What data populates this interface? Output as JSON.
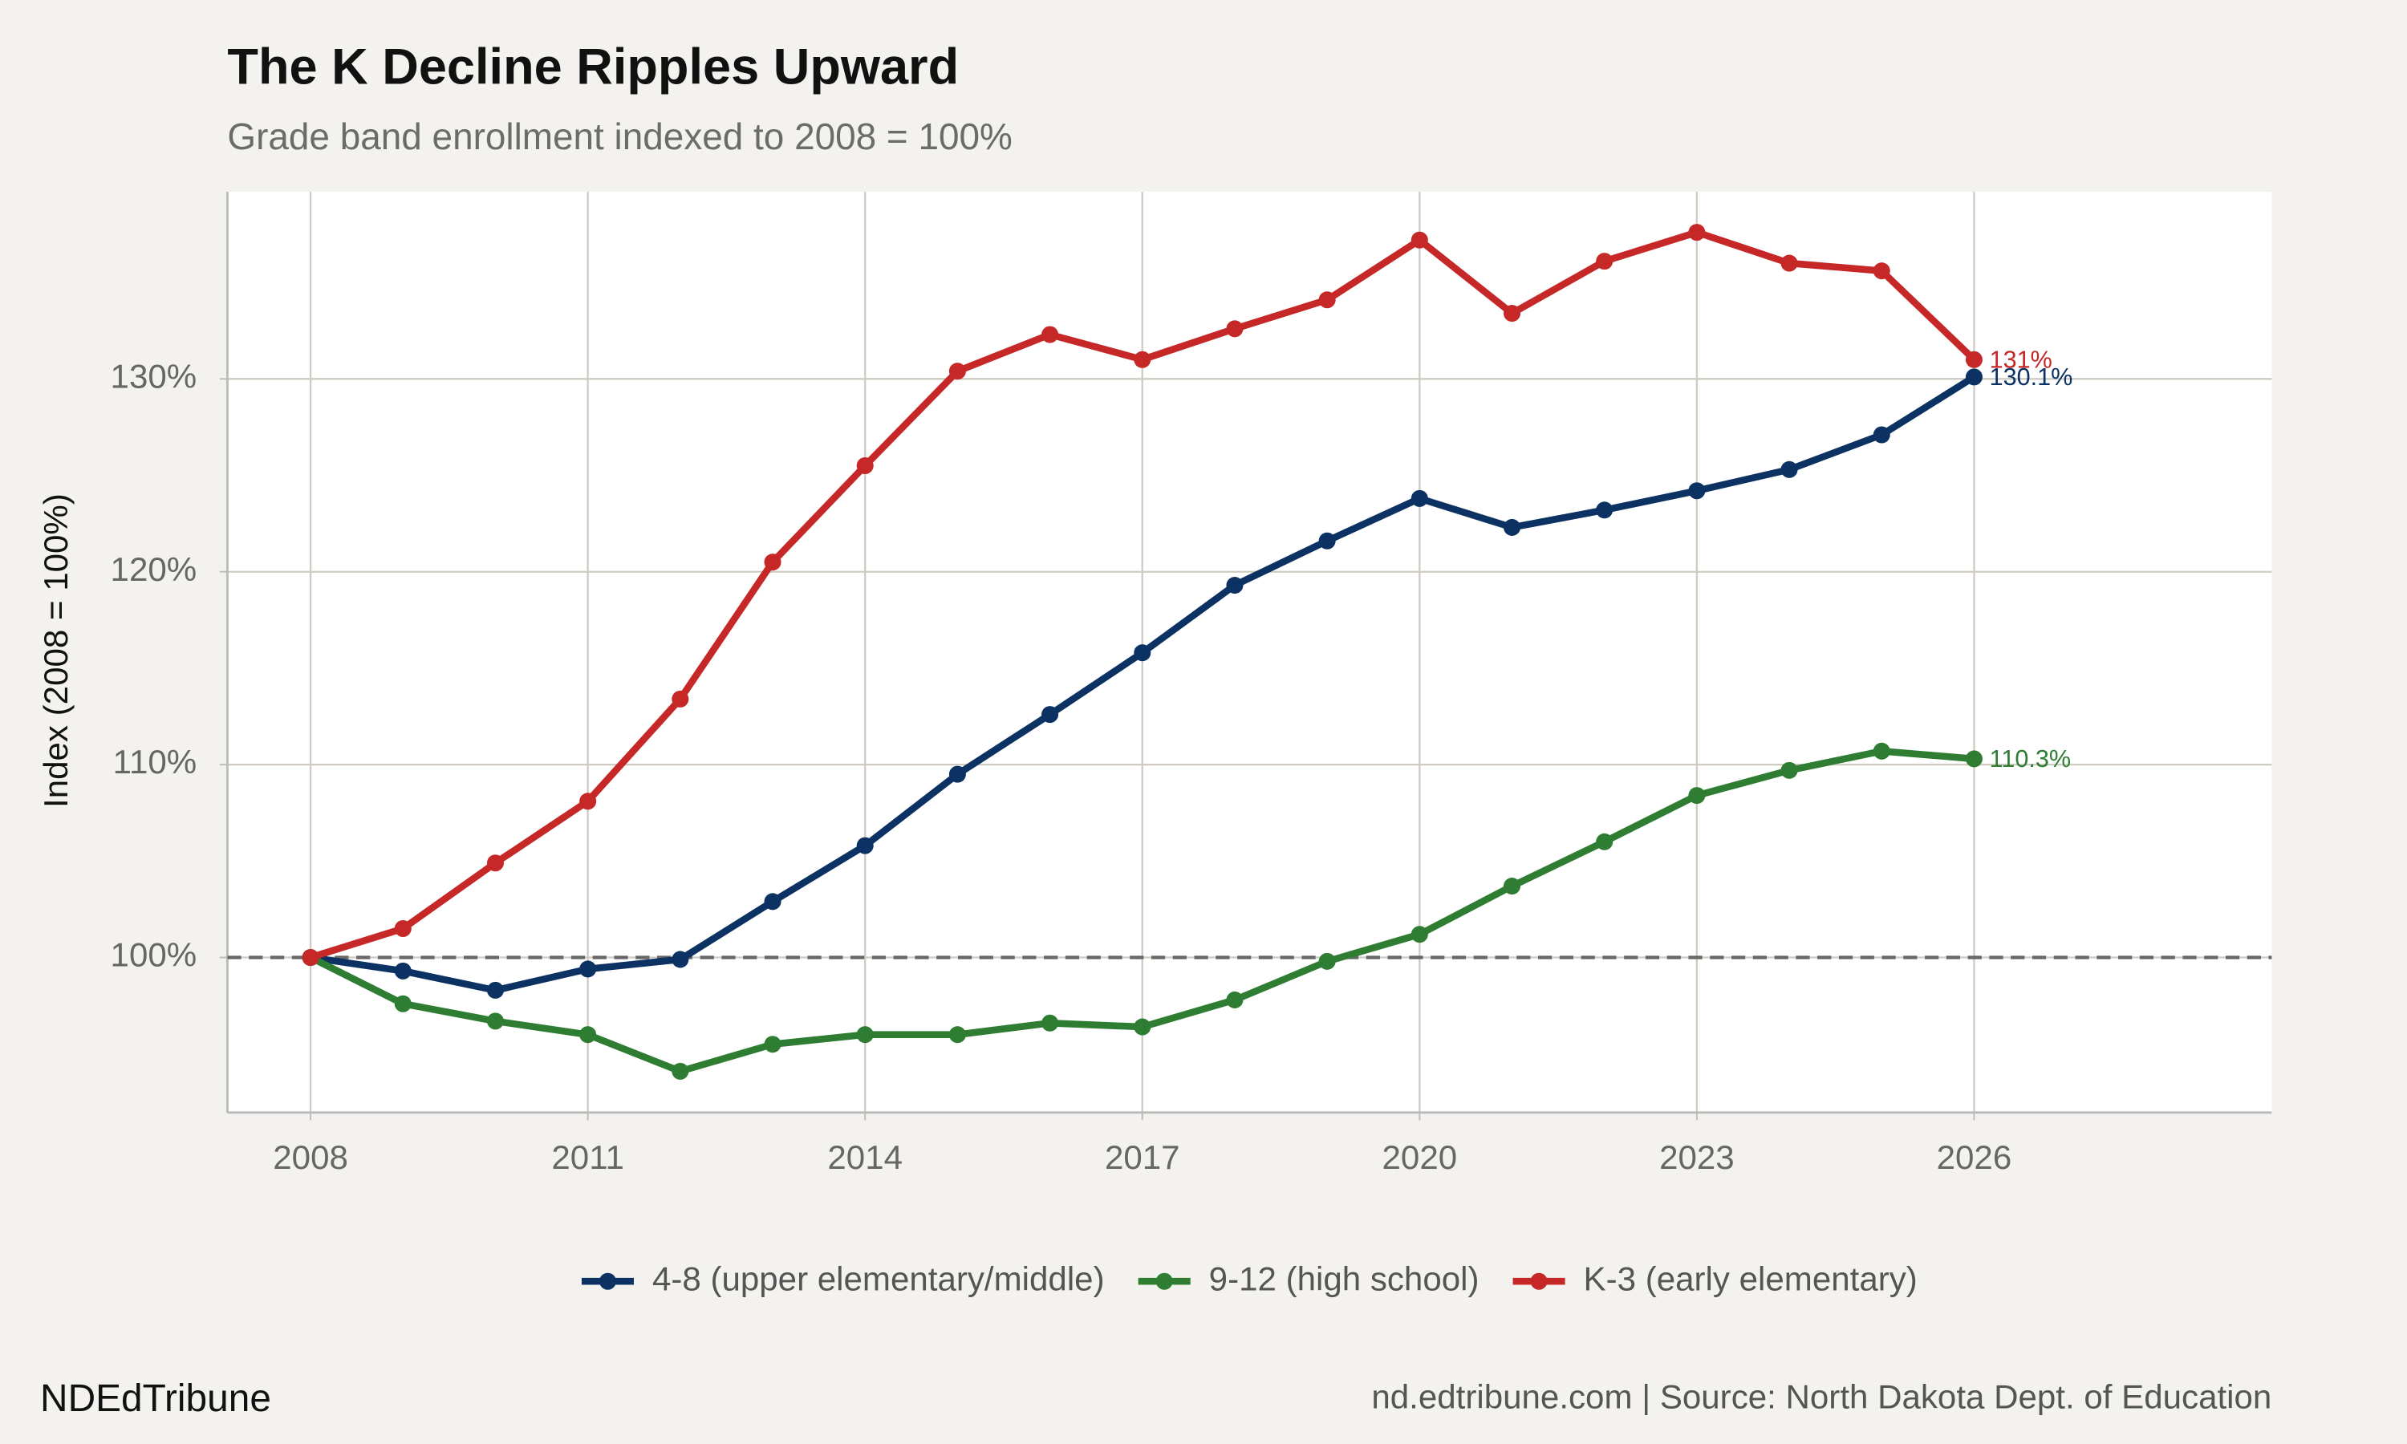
{
  "chart_data": {
    "type": "line",
    "title": "The K Decline Ripples Upward",
    "subtitle": "Grade band enrollment indexed to 2008 = 100%",
    "y_label": "Index (2008 = 100%)",
    "brand": "NDEdTribune",
    "caption": "nd.edtribune.com | Source: North Dakota Dept. of Education",
    "x": [
      2008,
      2009,
      2010,
      2011,
      2012,
      2013,
      2014,
      2015,
      2016,
      2017,
      2018,
      2019,
      2020,
      2021,
      2022,
      2023,
      2024,
      2025,
      2026
    ],
    "series": [
      {
        "name": "4-8 (upper elementary/middle)",
        "color": "#0b3263",
        "values": [
          100,
          99.3,
          98.3,
          99.4,
          99.9,
          102.9,
          105.8,
          109.5,
          112.6,
          115.8,
          119.3,
          121.6,
          123.8,
          122.3,
          123.2,
          124.2,
          125.3,
          127.1,
          130.1
        ],
        "value_labels": [
          null,
          null,
          null,
          null,
          null,
          null,
          null,
          null,
          null,
          null,
          null,
          null,
          null,
          null,
          null,
          null,
          null,
          null,
          "130.1%"
        ]
      },
      {
        "name": "9-12 (high school)",
        "color": "#2e7d32",
        "values": [
          100,
          97.6,
          96.7,
          96.0,
          94.1,
          95.5,
          96.0,
          96.0,
          96.6,
          96.4,
          97.8,
          99.8,
          101.2,
          103.7,
          106.0,
          108.4,
          109.7,
          110.7,
          110.3
        ],
        "value_labels": [
          null,
          null,
          null,
          null,
          null,
          null,
          null,
          null,
          null,
          null,
          null,
          null,
          null,
          null,
          null,
          null,
          null,
          null,
          "110.3%"
        ]
      },
      {
        "name": "K-3 (early elementary)",
        "color": "#c62828",
        "values": [
          100,
          101.5,
          104.9,
          108.1,
          113.4,
          120.5,
          125.5,
          130.4,
          132.3,
          131.0,
          132.6,
          134.1,
          137.2,
          133.4,
          136.1,
          137.6,
          136.0,
          135.6,
          131.0
        ],
        "value_labels": [
          null,
          null,
          null,
          null,
          null,
          null,
          null,
          null,
          null,
          null,
          null,
          null,
          null,
          null,
          null,
          null,
          null,
          null,
          "131%"
        ]
      }
    ],
    "xlim": [
      2007.1,
      2029.22
    ],
    "xticks": [
      2008,
      2011,
      2014,
      2017,
      2020,
      2023,
      2026
    ],
    "ylim": [
      91.96,
      139.7
    ],
    "yticks": [
      {
        "value": 100,
        "label": "100%"
      },
      {
        "value": 110,
        "label": "110%"
      },
      {
        "value": 120,
        "label": "120%"
      },
      {
        "value": 130,
        "label": "130%"
      }
    ],
    "hline": 100,
    "grid": true,
    "legend": "bottom"
  }
}
